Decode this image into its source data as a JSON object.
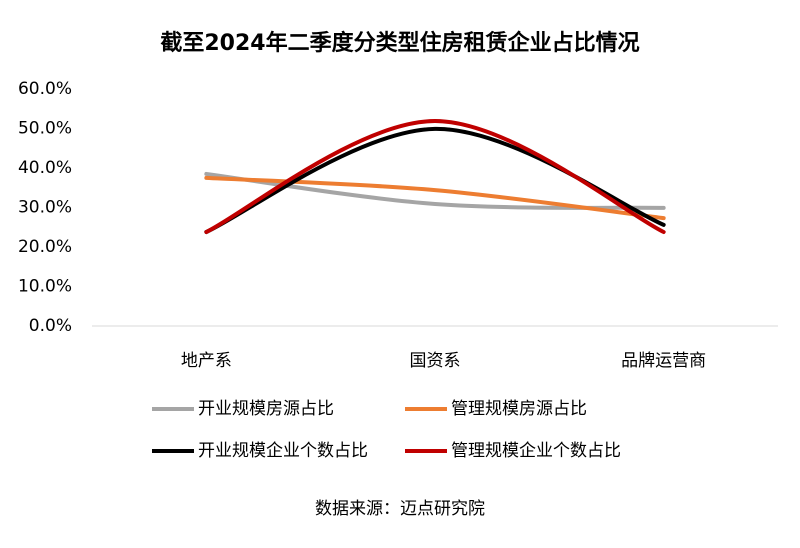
{
  "chart_data": {
    "type": "line",
    "title": "截至2024年二季度分类型住房租赁企业占比情况",
    "categories": [
      "地产系",
      "国资系",
      "品牌运营商"
    ],
    "series": [
      {
        "name": "开业规模房源占比",
        "color": "#a5a5a5",
        "values": [
          38.5,
          30.9,
          29.9
        ]
      },
      {
        "name": "管理规模房源占比",
        "color": "#ed7d31",
        "values": [
          37.5,
          34.4,
          27.3
        ]
      },
      {
        "name": "开业规模企业个数占比",
        "color": "#000000",
        "values": [
          23.8,
          49.9,
          25.6
        ]
      },
      {
        "name": "管理规模企业个数占比",
        "color": "#c00000",
        "values": [
          23.8,
          51.9,
          23.8
        ]
      }
    ],
    "ylim": [
      0,
      60
    ],
    "yticks": [
      {
        "value": 0,
        "label": "0.0%"
      },
      {
        "value": 10,
        "label": "10.0%"
      },
      {
        "value": 20,
        "label": "20.0%"
      },
      {
        "value": 30,
        "label": "30.0%"
      },
      {
        "value": 40,
        "label": "40.0%"
      },
      {
        "value": 50,
        "label": "50.0%"
      },
      {
        "value": 60,
        "label": "60.0%"
      }
    ],
    "grid": false,
    "source": "数据来源：迈点研究院"
  }
}
